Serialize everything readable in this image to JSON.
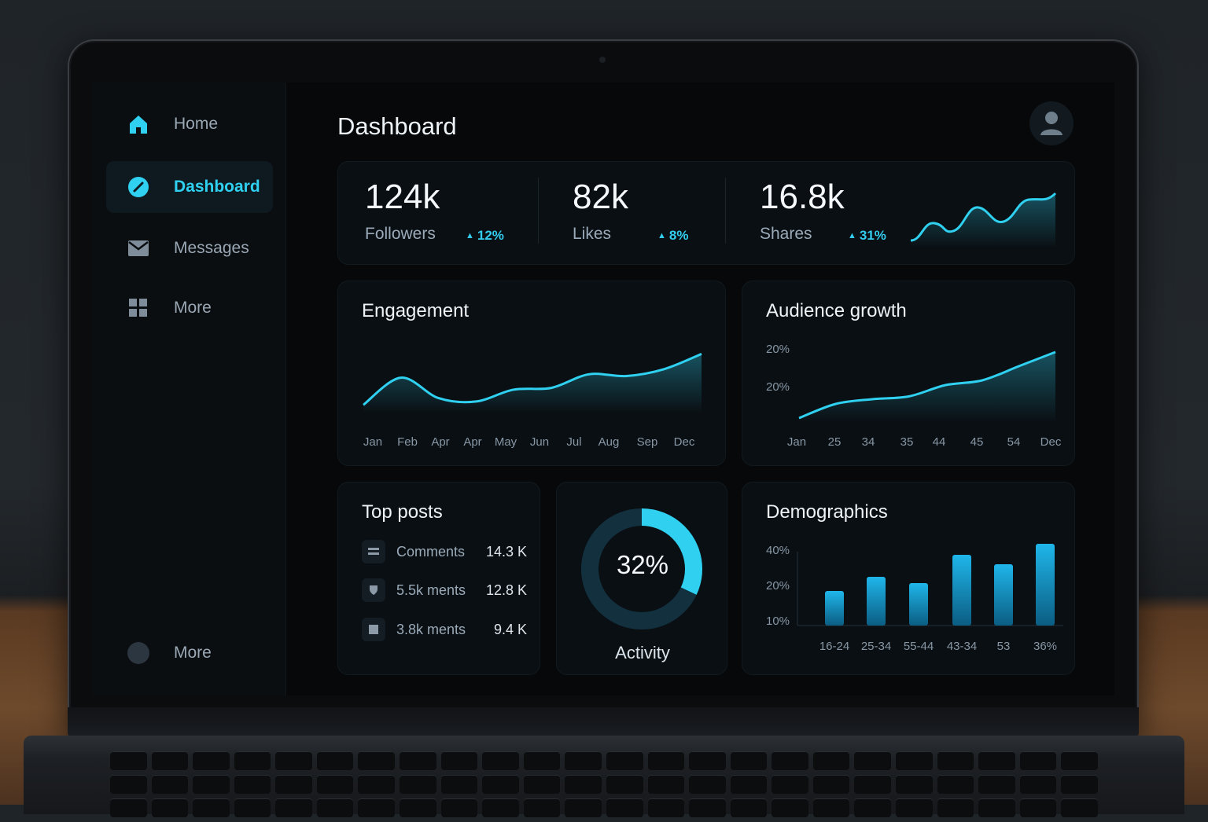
{
  "sidebar": {
    "items": [
      {
        "label": "Home",
        "icon": "home-icon"
      },
      {
        "label": "Dashboard",
        "icon": "compass-icon",
        "active": true
      },
      {
        "label": "Messages",
        "icon": "mail-icon"
      },
      {
        "label": "More",
        "icon": "grid-icon"
      }
    ],
    "footer": {
      "label": "More",
      "icon": "circle-icon"
    }
  },
  "header": {
    "title": "Dashboard",
    "avatar_icon": "user-icon"
  },
  "stats": [
    {
      "value": "124k",
      "label": "Followers",
      "delta": "12%"
    },
    {
      "value": "82k",
      "label": "Likes",
      "delta": "8%"
    },
    {
      "value": "16.8k",
      "label": "Shares",
      "delta": "31%"
    }
  ],
  "colors": {
    "accent": "#2fd0f0",
    "background": "#06080a",
    "card": "#0a0f13"
  },
  "engagement": {
    "title": "Engagement",
    "chart_data": {
      "type": "area",
      "categories": [
        "Jan",
        "Feb",
        "Apr",
        "Apr",
        "May",
        "Jun",
        "Jul",
        "Aug",
        "Sep",
        "Dec"
      ],
      "values": [
        10,
        42,
        18,
        14,
        28,
        30,
        46,
        44,
        52,
        70
      ],
      "ylim": [
        0,
        100
      ],
      "grid": false
    }
  },
  "audience": {
    "title": "Audience growth",
    "y_ticks": [
      "20%",
      "20%"
    ],
    "chart_data": {
      "type": "area",
      "categories": [
        "Jan",
        "25",
        "34",
        "35",
        "44",
        "45",
        "54",
        "Dec"
      ],
      "values": [
        5,
        20,
        25,
        28,
        40,
        45,
        60,
        75
      ],
      "ylim": [
        0,
        100
      ],
      "grid": false
    }
  },
  "top_posts": {
    "title": "Top posts",
    "rows": [
      {
        "label": "Comments",
        "value": "14.3 K",
        "icon": "list-icon"
      },
      {
        "label": "5.5k ments",
        "value": "12.8 K",
        "icon": "shield-icon"
      },
      {
        "label": "3.8k ments",
        "value": "9.4 K",
        "icon": "square-icon"
      }
    ]
  },
  "activity": {
    "value": "32%",
    "label": "Activity",
    "chart_data": {
      "type": "pie",
      "values": [
        32,
        68
      ],
      "style": "donut"
    }
  },
  "demographics": {
    "title": "Demographics",
    "y_ticks": [
      "40%",
      "20%",
      "10%"
    ],
    "chart_data": {
      "type": "bar",
      "categories": [
        "16-24",
        "25-34",
        "55-44",
        "43-34",
        "53",
        "36%"
      ],
      "values": [
        22,
        31,
        27,
        45,
        39,
        52
      ],
      "ylim": [
        0,
        60
      ]
    }
  }
}
